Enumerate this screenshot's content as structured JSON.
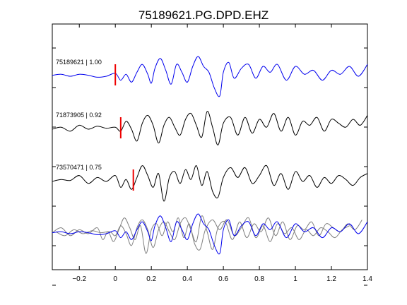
{
  "chart_data": {
    "type": "line",
    "title": "75189621.PG.DPD.EHZ",
    "xlabel": "",
    "ylabel": "",
    "xlim": [
      -0.35,
      1.4
    ],
    "x_ticks": [
      -0.2,
      0,
      0.2,
      0.4,
      0.6,
      0.8,
      1,
      1.2,
      1.4
    ],
    "x_tick_labels": [
      "−0.2",
      "0",
      "0.2",
      "0.4",
      "0.6",
      "0.8",
      "1",
      "1.2",
      "1.4"
    ],
    "y_ticks_labeled": false,
    "grid": false,
    "colors": {
      "reference": "#0000ee",
      "trace": "#000000",
      "overlay": "#808080",
      "pick": "#ee0000"
    },
    "series": [
      {
        "name": "75189621 | 1.00",
        "color": "#0000ee",
        "pick_time": 0.0,
        "x": [
          -0.35,
          -0.3,
          -0.25,
          -0.2,
          -0.15,
          -0.1,
          -0.05,
          0.0,
          0.03,
          0.06,
          0.09,
          0.12,
          0.15,
          0.18,
          0.2,
          0.22,
          0.25,
          0.28,
          0.31,
          0.34,
          0.37,
          0.4,
          0.43,
          0.46,
          0.49,
          0.52,
          0.55,
          0.58,
          0.6,
          0.63,
          0.66,
          0.7,
          0.74,
          0.78,
          0.82,
          0.86,
          0.9,
          0.95,
          1.0,
          1.05,
          1.1,
          1.15,
          1.2,
          1.25,
          1.3,
          1.35,
          1.4
        ],
        "y": [
          0.05,
          0.1,
          0.0,
          0.1,
          0.05,
          -0.05,
          0.0,
          0.15,
          -0.2,
          0.1,
          -0.3,
          0.2,
          0.6,
          0.1,
          -0.35,
          0.4,
          0.9,
          0.3,
          -0.4,
          0.6,
          0.2,
          -0.3,
          0.5,
          1.0,
          0.5,
          0.2,
          -0.6,
          -1.0,
          0.2,
          0.7,
          -0.1,
          0.4,
          0.6,
          -0.1,
          0.5,
          0.2,
          0.6,
          -0.2,
          0.5,
          0.1,
          0.3,
          -0.2,
          0.3,
          0.1,
          0.5,
          0.0,
          0.6
        ]
      },
      {
        "name": "71873905 | 0.92",
        "color": "#000000",
        "pick_time": 0.03,
        "x": [
          -0.35,
          -0.3,
          -0.25,
          -0.2,
          -0.15,
          -0.1,
          -0.05,
          0.0,
          0.03,
          0.06,
          0.09,
          0.12,
          0.15,
          0.18,
          0.21,
          0.24,
          0.27,
          0.3,
          0.33,
          0.36,
          0.39,
          0.42,
          0.45,
          0.48,
          0.51,
          0.54,
          0.57,
          0.6,
          0.64,
          0.68,
          0.72,
          0.76,
          0.8,
          0.84,
          0.88,
          0.92,
          0.96,
          1.0,
          1.04,
          1.08,
          1.12,
          1.16,
          1.2,
          1.24,
          1.28,
          1.32,
          1.36,
          1.4
        ],
        "y": [
          0.0,
          0.1,
          -0.1,
          0.2,
          0.0,
          0.15,
          0.05,
          0.1,
          -0.1,
          0.4,
          0.0,
          -0.6,
          0.3,
          0.7,
          0.2,
          -0.7,
          0.2,
          0.6,
          0.1,
          -0.3,
          0.5,
          0.8,
          0.2,
          -0.4,
          0.9,
          0.1,
          -0.8,
          0.3,
          0.6,
          -0.3,
          0.6,
          -0.2,
          0.5,
          0.1,
          0.8,
          -0.1,
          0.6,
          -0.3,
          0.4,
          0.2,
          0.6,
          -0.1,
          0.5,
          0.3,
          0.1,
          0.5,
          0.2,
          0.7
        ]
      },
      {
        "name": "73570471 | 0.75",
        "color": "#000000",
        "pick_time": 0.1,
        "x": [
          -0.35,
          -0.3,
          -0.25,
          -0.2,
          -0.15,
          -0.1,
          -0.05,
          0.0,
          0.03,
          0.06,
          0.09,
          0.12,
          0.15,
          0.18,
          0.21,
          0.24,
          0.27,
          0.3,
          0.33,
          0.36,
          0.39,
          0.42,
          0.45,
          0.48,
          0.51,
          0.54,
          0.57,
          0.6,
          0.64,
          0.68,
          0.72,
          0.76,
          0.8,
          0.84,
          0.88,
          0.92,
          0.96,
          1.0,
          1.04,
          1.08,
          1.12,
          1.16,
          1.2,
          1.24,
          1.28,
          1.32,
          1.36,
          1.4
        ],
        "y": [
          0.0,
          0.1,
          0.05,
          0.3,
          -0.1,
          0.2,
          0.0,
          0.3,
          -0.3,
          0.1,
          -0.4,
          0.2,
          0.8,
          0.3,
          -0.3,
          0.4,
          -1.0,
          0.2,
          0.5,
          -0.1,
          0.6,
          0.1,
          0.8,
          -0.2,
          0.5,
          -0.5,
          -0.8,
          0.2,
          0.7,
          0.2,
          0.7,
          -0.1,
          0.3,
          0.8,
          -0.2,
          0.4,
          -0.4,
          0.5,
          0.0,
          0.3,
          -0.3,
          0.2,
          -0.1,
          0.3,
          0.1,
          -0.2,
          0.2,
          0.4
        ]
      }
    ]
  }
}
